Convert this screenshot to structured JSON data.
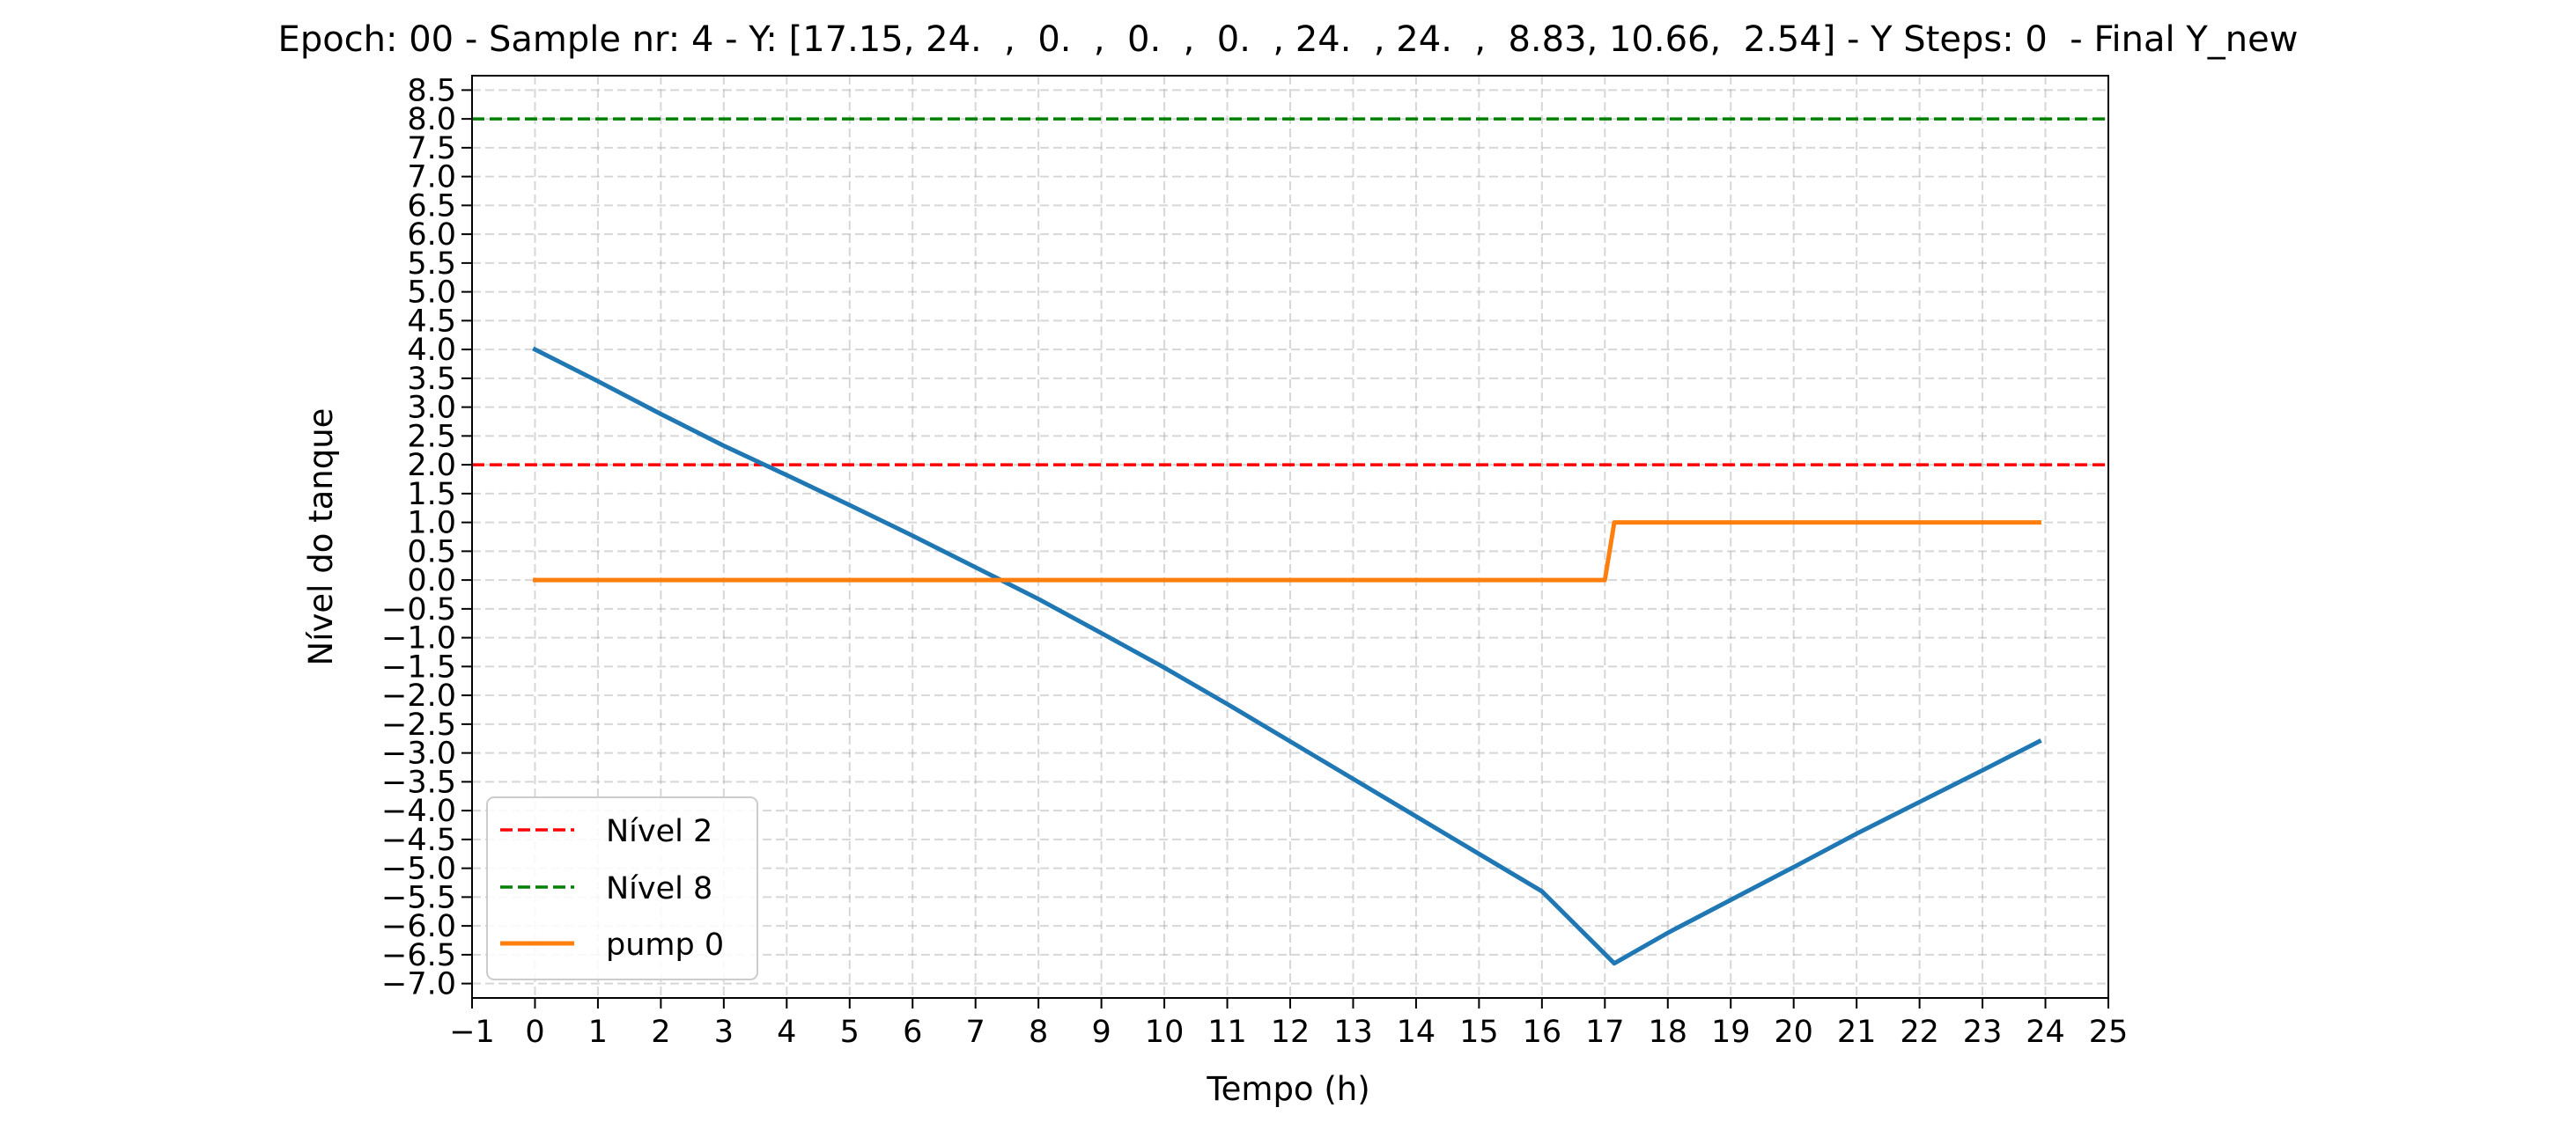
{
  "chart_data": {
    "type": "line",
    "title": "Epoch: 00 - Sample nr: 4 - Y: [17.15, 24.  ,  0.  ,  0.  ,  0.  , 24.  , 24.  ,  8.83, 10.66,  2.54] - Y Steps: 0  - Final Y_new",
    "xlabel": "Tempo (h)",
    "ylabel": "Nível do tanque",
    "xlim": [
      -1,
      25
    ],
    "ylim": [
      -7.25,
      8.75
    ],
    "xticks": [
      -1,
      0,
      1,
      2,
      3,
      4,
      5,
      6,
      7,
      8,
      9,
      10,
      11,
      12,
      13,
      14,
      15,
      16,
      17,
      18,
      19,
      20,
      21,
      22,
      23,
      24,
      25
    ],
    "xtick_labels": [
      "−1",
      "0",
      "1",
      "2",
      "3",
      "4",
      "5",
      "6",
      "7",
      "8",
      "9",
      "10",
      "11",
      "12",
      "13",
      "14",
      "15",
      "16",
      "17",
      "18",
      "19",
      "20",
      "21",
      "22",
      "23",
      "24",
      "25"
    ],
    "yticks": [
      8.5,
      8.0,
      7.5,
      7.0,
      6.5,
      6.0,
      5.5,
      5.0,
      4.5,
      4.0,
      3.5,
      3.0,
      2.5,
      2.0,
      1.5,
      1.0,
      0.5,
      0.0,
      -0.5,
      -1.0,
      -1.5,
      -2.0,
      -2.5,
      -3.0,
      -3.5,
      -4.0,
      -4.5,
      -5.0,
      -5.5,
      -6.0,
      -6.5,
      -7.0
    ],
    "ytick_labels": [
      "8.5",
      "8.0",
      "7.5",
      "7.0",
      "6.5",
      "6.0",
      "5.5",
      "5.0",
      "4.5",
      "4.0",
      "3.5",
      "3.0",
      "2.5",
      "2.0",
      "1.5",
      "1.0",
      "0.5",
      "0.0",
      "−0.5",
      "−1.0",
      "−1.5",
      "−2.0",
      "−2.5",
      "−3.0",
      "−3.5",
      "−4.0",
      "−4.5",
      "−5.0",
      "−5.5",
      "−6.0",
      "−6.5",
      "−7.0"
    ],
    "grid": true,
    "legend_position": "lower-left",
    "hlines": [
      {
        "name": "Nível 2",
        "y": 2,
        "color": "#ff0000",
        "style": "dashed"
      },
      {
        "name": "Nível 8",
        "y": 8,
        "color": "#008000",
        "style": "dashed"
      }
    ],
    "series": [
      {
        "color": "#1f77b4",
        "x": [
          0,
          1,
          2,
          3,
          4,
          5,
          6,
          7,
          8,
          9,
          10,
          11,
          12,
          13,
          14,
          15,
          16,
          17.15,
          18,
          19,
          20,
          21,
          22,
          23,
          23.9
        ],
        "y": [
          4.0,
          3.45,
          2.88,
          2.33,
          1.82,
          1.3,
          0.77,
          0.22,
          -0.33,
          -0.92,
          -1.52,
          -2.15,
          -2.8,
          -3.45,
          -4.1,
          -4.75,
          -5.4,
          -6.65,
          -6.12,
          -5.55,
          -4.98,
          -4.4,
          -3.85,
          -3.3,
          -2.8
        ]
      },
      {
        "name": "pump 0",
        "color": "#ff7f0e",
        "x": [
          0,
          17.0,
          17.15,
          23.9
        ],
        "y": [
          0,
          0,
          1,
          1
        ]
      }
    ]
  }
}
